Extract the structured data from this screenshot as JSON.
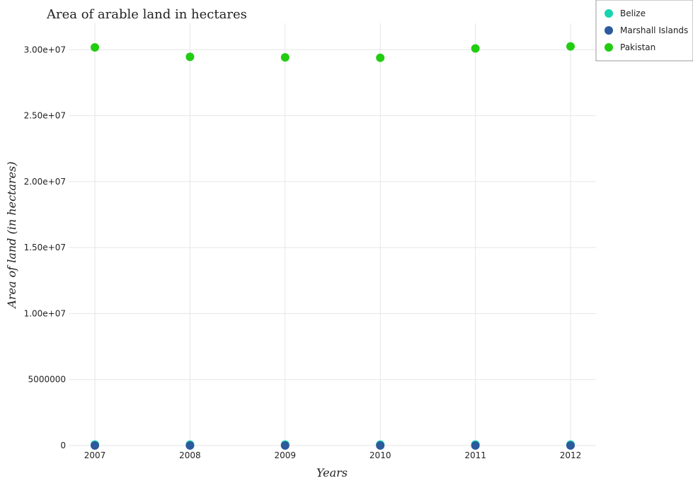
{
  "chart_data": {
    "type": "scatter",
    "title": "Area of arable land in hectares",
    "xlabel": "Years",
    "ylabel": "Area of land (in hectares)",
    "categories": [
      "2007",
      "2008",
      "2009",
      "2010",
      "2011",
      "2012"
    ],
    "ylim": [
      0,
      32000000
    ],
    "yticks": [
      0,
      5000000,
      10000000,
      15000000,
      20000000,
      25000000,
      30000000
    ],
    "ytick_labels": [
      "0",
      "5000000",
      "1.00e+07",
      "1.50e+07",
      "2.00e+07",
      "2.50e+07",
      "3.00e+07"
    ],
    "grid": true,
    "legend_position": "top-right",
    "series": [
      {
        "name": "Belize",
        "color": "#17d4b0",
        "values": [
          75000,
          75000,
          75000,
          75000,
          75000,
          75000
        ]
      },
      {
        "name": "Marshall Islands",
        "color": "#2d5a9c",
        "values": [
          2000,
          2000,
          2000,
          2000,
          2000,
          2000
        ]
      },
      {
        "name": "Pakistan",
        "color": "#22cc11",
        "values": [
          30180000,
          29460000,
          29420000,
          29390000,
          30100000,
          30250000
        ]
      }
    ]
  }
}
